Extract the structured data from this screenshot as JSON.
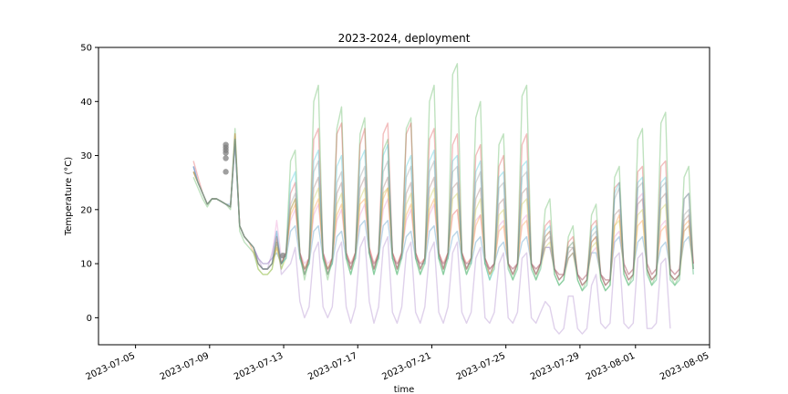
{
  "chart_data": {
    "type": "line",
    "title": "2023-2024, deployment",
    "xlabel": "time",
    "ylabel": "Temperature (°C)",
    "xlim": [
      "2023-07-03",
      "2023-08-05"
    ],
    "ylim": [
      -5,
      50
    ],
    "x_ticks": [
      "2023-07-05",
      "2023-07-09",
      "2023-07-13",
      "2023-07-17",
      "2023-07-21",
      "2023-07-25",
      "2023-07-29",
      "2023-08-01",
      "2023-08-05"
    ],
    "y_ticks": [
      0,
      10,
      20,
      30,
      40,
      50
    ],
    "grid": false,
    "legend": false,
    "colors": [
      "#1f77b4",
      "#ff7f0e",
      "#2ca02c",
      "#d62728",
      "#9467bd",
      "#8c564b",
      "#e377c2",
      "#7f7f7f",
      "#bcbd22",
      "#17becf"
    ],
    "series_defaults": {
      "start": "2023-07-08 03:00",
      "points_per_day": 4,
      "_comment": ""
    },
    "series": [
      {
        "color": "#1f77b4",
        "values": [
          28,
          25,
          23,
          21,
          22,
          22,
          21.5,
          21,
          21,
          32,
          17,
          15,
          14,
          13,
          11,
          10,
          10,
          11,
          12,
          10,
          11,
          16,
          17,
          11,
          9,
          10,
          16,
          17,
          11,
          9,
          10,
          15,
          16,
          11,
          10,
          11,
          17,
          18,
          12,
          10,
          11,
          17,
          18,
          11,
          10,
          11,
          15,
          16,
          11,
          10,
          10,
          16,
          17,
          11,
          10,
          11,
          15,
          16,
          11,
          10,
          10,
          14,
          15,
          10,
          9,
          10,
          13,
          14,
          10,
          9,
          10,
          14,
          15,
          10,
          9,
          10,
          13,
          13,
          9,
          8,
          8,
          11,
          12,
          8,
          7,
          8,
          12,
          12,
          8,
          7,
          7,
          14,
          15,
          10,
          8,
          9,
          14,
          15,
          10,
          8,
          9,
          13,
          14,
          9,
          8,
          9,
          14,
          15,
          10
        ]
      },
      {
        "color": "#ff7f0e",
        "values": [
          27,
          25,
          23,
          21,
          22,
          22,
          21.5,
          21,
          20.5,
          33,
          17,
          15,
          14,
          12,
          10,
          9,
          9,
          10,
          13,
          10,
          12,
          19,
          21,
          12,
          9,
          11,
          20,
          22,
          12,
          9,
          11,
          19,
          21,
          12,
          10,
          12,
          21,
          22,
          13,
          10,
          12,
          22,
          24,
          12,
          10,
          12,
          19,
          21,
          12,
          10,
          11,
          20,
          22,
          12,
          10,
          12,
          19,
          20,
          12,
          10,
          11,
          17,
          19,
          11,
          9,
          10,
          16,
          17,
          10,
          9,
          10,
          17,
          18,
          10,
          9,
          10,
          15,
          16,
          9,
          8,
          8,
          13,
          14,
          8,
          7,
          8,
          14,
          15,
          8,
          7,
          7,
          17,
          19,
          10,
          8,
          9,
          17,
          18,
          10,
          8,
          9,
          16,
          17,
          9,
          8,
          9,
          17,
          18,
          10
        ]
      },
      {
        "color": "#2ca02c",
        "values": [
          26,
          24,
          22,
          20.5,
          22,
          22,
          21.5,
          21,
          20,
          35,
          16,
          14,
          13,
          12,
          9,
          8,
          8,
          9,
          14,
          9,
          12,
          29,
          31,
          12,
          7,
          11,
          40,
          43,
          11,
          7,
          11,
          35,
          39,
          11,
          8,
          12,
          34,
          37,
          12,
          8,
          12,
          31,
          33,
          11,
          8,
          12,
          35,
          37,
          11,
          8,
          11,
          40,
          43,
          11,
          8,
          12,
          45,
          47,
          12,
          8,
          11,
          37,
          40,
          10,
          7,
          10,
          32,
          34,
          10,
          7,
          10,
          41,
          43,
          10,
          7,
          10,
          20,
          22,
          8,
          6,
          7,
          15,
          17,
          7,
          5,
          7,
          19,
          21,
          7,
          5,
          6,
          26,
          28,
          8,
          6,
          8,
          33,
          35,
          9,
          6,
          8,
          36,
          38,
          8,
          6,
          8,
          26,
          28,
          9
        ]
      },
      {
        "color": "#d62728",
        "values": [
          29,
          26,
          23,
          21,
          22,
          22,
          21.5,
          21,
          20.5,
          34,
          17,
          15,
          14,
          13,
          10,
          9,
          9,
          10,
          15,
          10,
          12,
          23,
          25,
          12,
          8,
          11,
          33,
          35,
          12,
          8,
          11,
          34,
          36,
          12,
          9,
          12,
          32,
          35,
          13,
          9,
          12,
          34,
          36,
          12,
          9,
          12,
          34,
          36,
          12,
          9,
          11,
          33,
          35,
          12,
          9,
          12,
          32,
          34,
          12,
          9,
          11,
          30,
          32,
          11,
          8,
          10,
          28,
          30,
          10,
          8,
          10,
          32,
          34,
          10,
          8,
          10,
          17,
          18,
          9,
          7,
          8,
          14,
          15,
          8,
          6,
          7,
          17,
          18,
          8,
          6,
          7,
          24,
          25,
          9,
          7,
          8,
          27,
          28,
          9,
          7,
          8,
          28,
          29,
          8,
          7,
          8,
          22,
          23,
          10
        ]
      },
      {
        "color": "#9467bd",
        "values": [
          28,
          25,
          23,
          21,
          22,
          22,
          21.5,
          21,
          20.5,
          33,
          17,
          15,
          14,
          13,
          11,
          9,
          9,
          12,
          16,
          8,
          9,
          10,
          13,
          3,
          0,
          2,
          12,
          14,
          2,
          0,
          2,
          12,
          14,
          2,
          -1,
          2,
          13,
          15,
          3,
          -1,
          2,
          13,
          15,
          1,
          -1,
          2,
          12,
          14,
          1,
          -1,
          2,
          12,
          14,
          1,
          -1,
          2,
          12,
          14,
          1,
          -1,
          1,
          11,
          13,
          0,
          -1,
          1,
          10,
          12,
          0,
          -1,
          1,
          11,
          12,
          0,
          -1,
          1,
          3,
          2,
          -2,
          -3,
          -2,
          4,
          4,
          -2,
          -3,
          -2,
          6,
          8,
          -1,
          -2,
          -1,
          11,
          12,
          -1,
          -2,
          -1,
          11,
          12,
          -2,
          -2,
          -1,
          10,
          11,
          -2
        ]
      },
      {
        "color": "#8c564b",
        "values": [
          27,
          25,
          23,
          21,
          22,
          22,
          21.5,
          21,
          20.5,
          33,
          17,
          15,
          14,
          13,
          10,
          9,
          9,
          10,
          14,
          10,
          12,
          20,
          22,
          12,
          9,
          11,
          24,
          26,
          12,
          9,
          11,
          23,
          25,
          12,
          9,
          12,
          24,
          26,
          12,
          9,
          12,
          24,
          26,
          12,
          9,
          12,
          23,
          25,
          12,
          9,
          11,
          24,
          26,
          12,
          9,
          12,
          24,
          25,
          12,
          9,
          11,
          22,
          24,
          11,
          9,
          10,
          21,
          22,
          10,
          8,
          10,
          23,
          24,
          10,
          8,
          10,
          14,
          15,
          9,
          7,
          8,
          12,
          13,
          8,
          6,
          7,
          14,
          15,
          8,
          6,
          7,
          19,
          20,
          9,
          7,
          8,
          21,
          22,
          9,
          7,
          8,
          22,
          23,
          8,
          7,
          8,
          18,
          19,
          9
        ]
      },
      {
        "color": "#e377c2",
        "values": [
          28,
          25,
          23,
          21,
          22,
          22,
          21.5,
          21,
          20.5,
          33,
          17,
          15,
          14,
          13,
          11,
          10,
          10,
          11,
          18,
          11,
          12,
          18,
          20,
          12,
          10,
          11,
          19,
          21,
          12,
          10,
          11,
          18,
          20,
          12,
          10,
          12,
          19,
          21,
          13,
          10,
          12,
          20,
          22,
          12,
          10,
          12,
          18,
          20,
          12,
          10,
          11,
          19,
          21,
          12,
          10,
          12,
          19,
          20,
          12,
          10,
          11,
          18,
          19,
          11,
          9,
          10,
          17,
          18,
          10,
          9,
          10,
          18,
          19,
          10,
          9,
          10,
          13,
          13,
          9,
          8,
          8,
          11,
          12,
          8,
          7,
          8,
          12,
          13,
          8,
          7,
          7,
          15,
          16,
          10,
          8,
          9,
          22,
          23,
          10,
          8,
          9,
          17,
          18,
          9,
          8,
          9,
          16,
          17,
          10
        ]
      },
      {
        "color": "#7f7f7f",
        "values": [
          27,
          25,
          23,
          21,
          22,
          22,
          21.5,
          21,
          20.5,
          33,
          17,
          15,
          14,
          13,
          10,
          9,
          9,
          10,
          15,
          10,
          12,
          21,
          23,
          12,
          8,
          11,
          27,
          29,
          12,
          8,
          11,
          25,
          27,
          12,
          9,
          12,
          26,
          28,
          12,
          9,
          12,
          27,
          29,
          12,
          9,
          12,
          26,
          28,
          12,
          9,
          11,
          27,
          29,
          12,
          9,
          12,
          27,
          28,
          12,
          9,
          11,
          25,
          27,
          11,
          8,
          10,
          24,
          25,
          10,
          8,
          10,
          26,
          27,
          10,
          8,
          10,
          15,
          16,
          9,
          7,
          8,
          13,
          13,
          8,
          6,
          7,
          15,
          16,
          8,
          6,
          7,
          22,
          24,
          9,
          7,
          8,
          24,
          25,
          9,
          7,
          8,
          24,
          25,
          8,
          7,
          8,
          19,
          20,
          9
        ]
      },
      {
        "color": "#bcbd22",
        "values": [
          27,
          25,
          23,
          21,
          22,
          22,
          21.5,
          21,
          20.5,
          34,
          17,
          15,
          14,
          13,
          9,
          8,
          8,
          9,
          13,
          9,
          11,
          20,
          22,
          11,
          8,
          10,
          22,
          24,
          11,
          8,
          10,
          21,
          23,
          11,
          8,
          11,
          22,
          24,
          12,
          8,
          11,
          23,
          24,
          11,
          8,
          11,
          21,
          23,
          11,
          8,
          10,
          22,
          24,
          11,
          8,
          11,
          22,
          23,
          11,
          8,
          10,
          20,
          22,
          10,
          8,
          9,
          19,
          20,
          9,
          7,
          9,
          21,
          22,
          9,
          7,
          9,
          13,
          14,
          8,
          6,
          7,
          11,
          12,
          7,
          5,
          6,
          13,
          14,
          7,
          5,
          6,
          17,
          18,
          8,
          6,
          7,
          19,
          20,
          8,
          6,
          7,
          20,
          21,
          7,
          6,
          7,
          16,
          17,
          8
        ]
      },
      {
        "color": "#17becf",
        "values": [
          28,
          25,
          23,
          21,
          22,
          22,
          21.5,
          21,
          20.5,
          33,
          17,
          15,
          14,
          13,
          10,
          9,
          9,
          10,
          16,
          10,
          11,
          25,
          27,
          11,
          8,
          10,
          29,
          31,
          11,
          8,
          10,
          28,
          30,
          11,
          8,
          11,
          29,
          31,
          12,
          8,
          11,
          30,
          32,
          11,
          8,
          11,
          28,
          30,
          11,
          8,
          10,
          29,
          31,
          11,
          8,
          11,
          29,
          30,
          11,
          8,
          10,
          27,
          29,
          10,
          7,
          9,
          26,
          27,
          9,
          7,
          9,
          28,
          29,
          9,
          7,
          9,
          16,
          17,
          8,
          6,
          7,
          13,
          14,
          7,
          5,
          6,
          16,
          17,
          7,
          5,
          6,
          23,
          25,
          8,
          6,
          7,
          25,
          26,
          8,
          6,
          7,
          25,
          26,
          7,
          6,
          7,
          22,
          23,
          8
        ]
      }
    ],
    "markers": {
      "color": "#7f7f7f",
      "points": [
        {
          "x": "2023-07-09 21:00",
          "y": 27
        },
        {
          "x": "2023-07-09 21:00",
          "y": 29.5
        },
        {
          "x": "2023-07-09 21:00",
          "y": 30.5
        },
        {
          "x": "2023-07-09 21:00",
          "y": 31
        },
        {
          "x": "2023-07-09 21:00",
          "y": 31.5
        },
        {
          "x": "2023-07-09 21:00",
          "y": 32
        },
        {
          "x": "2023-07-12 23:00",
          "y": 11.5
        }
      ]
    }
  }
}
